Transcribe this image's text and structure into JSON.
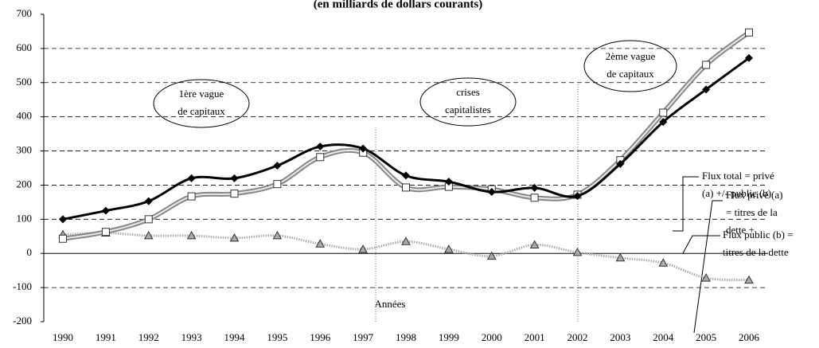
{
  "chart_data": {
    "type": "line",
    "subtitle": "(en milliards de dollars courants)",
    "x_label": "Années",
    "categories": [
      "1990",
      "1991",
      "1992",
      "1993",
      "1994",
      "1995",
      "1996",
      "1997",
      "1998",
      "1999",
      "2000",
      "2001",
      "2002",
      "2003",
      "2004",
      "2005",
      "2006"
    ],
    "ylim": [
      -200,
      700
    ],
    "yticks": [
      -200,
      -100,
      0,
      100,
      200,
      300,
      400,
      500,
      600,
      700
    ],
    "grid": true,
    "series": [
      {
        "name": "Flux privé (a) = titres de la dette +",
        "color": "#000000",
        "marker": "diamond",
        "values": [
          100,
          125,
          153,
          220,
          220,
          257,
          313,
          307,
          228,
          210,
          180,
          192,
          168,
          262,
          385,
          480,
          572
        ]
      },
      {
        "name": "Flux total = privé (a) +/- public (b)",
        "color": "#888888",
        "marker": "square",
        "values": [
          43,
          63,
          100,
          167,
          175,
          203,
          282,
          295,
          193,
          195,
          188,
          163,
          172,
          273,
          412,
          552,
          647
        ]
      },
      {
        "name": "Flux public (b) = titres de la dette",
        "color": "#aaaaaa",
        "marker": "triangle",
        "values": [
          55,
          60,
          52,
          52,
          45,
          52,
          28,
          12,
          35,
          12,
          -8,
          25,
          3,
          -13,
          -28,
          -72,
          -78
        ]
      }
    ],
    "annotations": [
      {
        "lines": [
          "1ère vague",
          "de capitaux"
        ]
      },
      {
        "lines": [
          "crises",
          "capitalistes"
        ]
      },
      {
        "lines": [
          "2ème vague",
          "de capitaux"
        ]
      },
      {
        "lines": [
          "Flux privé (a)",
          "= titres de la",
          "dette +"
        ]
      },
      {
        "lines": [
          "Flux total = privé",
          "(a) +/- public (b)"
        ]
      },
      {
        "lines": [
          "Flux public (b) =",
          "titres de la dette"
        ]
      }
    ]
  }
}
